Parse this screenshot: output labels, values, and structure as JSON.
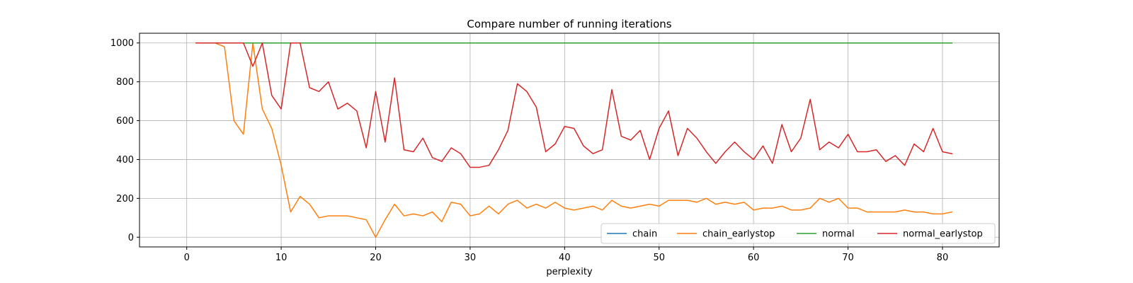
{
  "chart_data": {
    "type": "line",
    "title": "Compare number of running iterations",
    "xlabel": "perplexity",
    "ylabel": "",
    "xlim": [
      -5,
      86
    ],
    "ylim": [
      -50,
      1050
    ],
    "xticks": [
      0,
      10,
      20,
      30,
      40,
      50,
      60,
      70,
      80
    ],
    "yticks": [
      0,
      200,
      400,
      600,
      800,
      1000
    ],
    "grid": true,
    "legend_position": "lower-right",
    "legend_columns": 4,
    "x": [
      1,
      2,
      3,
      4,
      5,
      6,
      7,
      8,
      9,
      10,
      11,
      12,
      13,
      14,
      15,
      16,
      17,
      18,
      19,
      20,
      21,
      22,
      23,
      24,
      25,
      26,
      27,
      28,
      29,
      30,
      31,
      32,
      33,
      34,
      35,
      36,
      37,
      38,
      39,
      40,
      41,
      42,
      43,
      44,
      45,
      46,
      47,
      48,
      49,
      50,
      51,
      52,
      53,
      54,
      55,
      56,
      57,
      58,
      59,
      60,
      61,
      62,
      63,
      64,
      65,
      66,
      67,
      68,
      69,
      70,
      71,
      72,
      73,
      74,
      75,
      76,
      77,
      78,
      79,
      80,
      81
    ],
    "series": [
      {
        "name": "chain",
        "color": "#1f77b4",
        "values": [
          1000,
          1000,
          1000,
          1000,
          1000,
          1000,
          1000,
          1000,
          1000,
          1000,
          1000,
          1000,
          1000,
          1000,
          1000,
          1000,
          1000,
          1000,
          1000,
          1000,
          1000,
          1000,
          1000,
          1000,
          1000,
          1000,
          1000,
          1000,
          1000,
          1000,
          1000,
          1000,
          1000,
          1000,
          1000,
          1000,
          1000,
          1000,
          1000,
          1000,
          1000,
          1000,
          1000,
          1000,
          1000,
          1000,
          1000,
          1000,
          1000,
          1000,
          1000,
          1000,
          1000,
          1000,
          1000,
          1000,
          1000,
          1000,
          1000,
          1000,
          1000,
          1000,
          1000,
          1000,
          1000,
          1000,
          1000,
          1000,
          1000,
          1000,
          1000,
          1000,
          1000,
          1000,
          1000,
          1000,
          1000,
          1000,
          1000,
          1000,
          1000
        ]
      },
      {
        "name": "chain_earlystop",
        "color": "#ff7f0e",
        "values": [
          1000,
          1000,
          1000,
          980,
          600,
          530,
          1000,
          660,
          560,
          370,
          130,
          210,
          170,
          100,
          110,
          110,
          110,
          100,
          90,
          0,
          90,
          170,
          110,
          120,
          110,
          130,
          80,
          180,
          170,
          110,
          120,
          160,
          120,
          170,
          190,
          150,
          170,
          150,
          180,
          150,
          140,
          150,
          160,
          140,
          190,
          160,
          150,
          160,
          170,
          160,
          190,
          190,
          190,
          180,
          200,
          170,
          180,
          170,
          180,
          140,
          150,
          150,
          160,
          140,
          140,
          150,
          200,
          180,
          200,
          150,
          150,
          130,
          130,
          130,
          130,
          140,
          130,
          130,
          120,
          120,
          130
        ]
      },
      {
        "name": "normal",
        "color": "#2ca02c",
        "values": [
          1000,
          1000,
          1000,
          1000,
          1000,
          1000,
          1000,
          1000,
          1000,
          1000,
          1000,
          1000,
          1000,
          1000,
          1000,
          1000,
          1000,
          1000,
          1000,
          1000,
          1000,
          1000,
          1000,
          1000,
          1000,
          1000,
          1000,
          1000,
          1000,
          1000,
          1000,
          1000,
          1000,
          1000,
          1000,
          1000,
          1000,
          1000,
          1000,
          1000,
          1000,
          1000,
          1000,
          1000,
          1000,
          1000,
          1000,
          1000,
          1000,
          1000,
          1000,
          1000,
          1000,
          1000,
          1000,
          1000,
          1000,
          1000,
          1000,
          1000,
          1000,
          1000,
          1000,
          1000,
          1000,
          1000,
          1000,
          1000,
          1000,
          1000,
          1000,
          1000,
          1000,
          1000,
          1000,
          1000,
          1000,
          1000,
          1000,
          1000,
          1000
        ]
      },
      {
        "name": "normal_earlystop",
        "color": "#d62728",
        "values": [
          1000,
          1000,
          1000,
          1000,
          1000,
          1000,
          880,
          1000,
          730,
          660,
          1000,
          1000,
          770,
          750,
          800,
          660,
          690,
          650,
          460,
          750,
          490,
          820,
          450,
          440,
          510,
          410,
          390,
          460,
          430,
          360,
          360,
          370,
          450,
          550,
          790,
          750,
          670,
          440,
          480,
          570,
          560,
          470,
          430,
          450,
          760,
          520,
          500,
          550,
          400,
          560,
          650,
          420,
          560,
          510,
          440,
          380,
          440,
          490,
          440,
          400,
          470,
          380,
          580,
          440,
          510,
          710,
          450,
          490,
          460,
          530,
          440,
          440,
          450,
          390,
          420,
          370,
          480,
          440,
          560,
          440,
          430
        ]
      }
    ]
  }
}
